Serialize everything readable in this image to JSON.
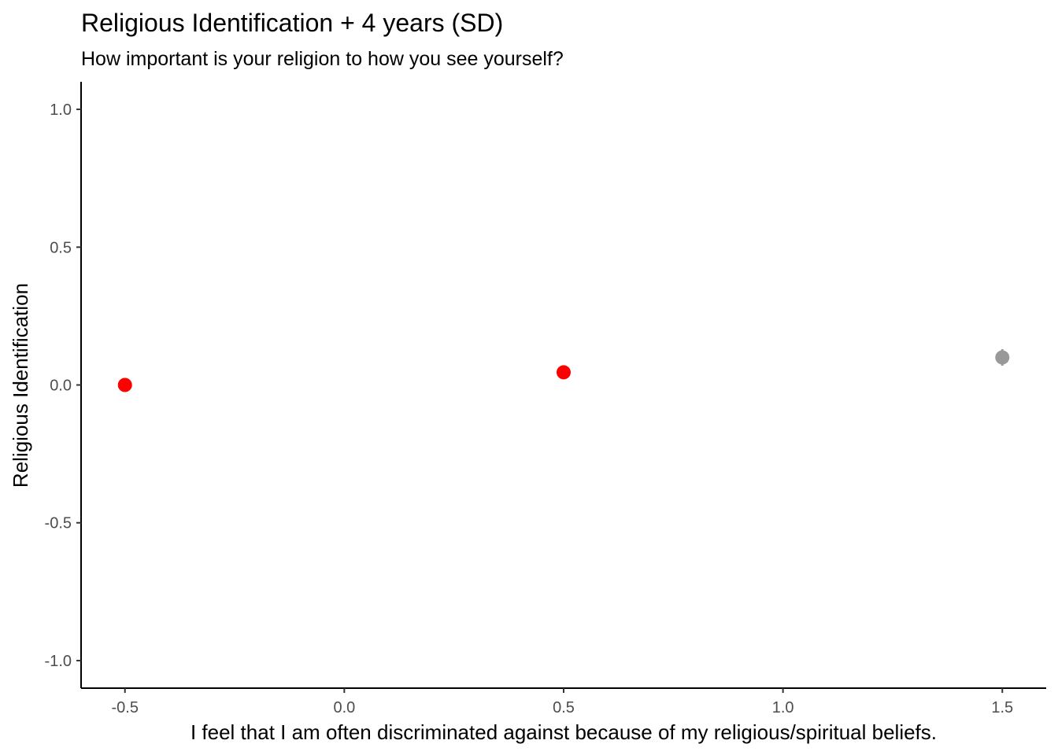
{
  "chart_data": {
    "type": "scatter",
    "title": "Religious Identification + 4 years (SD)",
    "subtitle": "How important is your religion to how you see yourself?",
    "xlabel": "I feel that I am often discriminated against because of my religious/spiritual beliefs.",
    "ylabel": "Religious Identification",
    "xlim": [
      -0.6,
      1.6
    ],
    "ylim": [
      -1.1,
      1.1
    ],
    "x_ticks": [
      -0.5,
      0.0,
      0.5,
      1.0,
      1.5
    ],
    "x_tick_labels": [
      "-0.5",
      "0.0",
      "0.5",
      "1.0",
      "1.5"
    ],
    "y_ticks": [
      -1.0,
      -0.5,
      0.0,
      0.5,
      1.0
    ],
    "y_tick_labels": [
      "-1.0",
      "-0.5",
      "0.0",
      "0.5",
      "1.0"
    ],
    "grid": false,
    "points": [
      {
        "x": -0.5,
        "y": 0.0,
        "ymin": 0.0,
        "ymax": 0.0,
        "color": "#ff0000"
      },
      {
        "x": 0.5,
        "y": 0.046,
        "ymin": 0.04,
        "ymax": 0.052,
        "color": "#ff0000"
      },
      {
        "x": 1.5,
        "y": 0.1,
        "ymin": 0.07,
        "ymax": 0.13,
        "color": "#999999"
      }
    ]
  }
}
